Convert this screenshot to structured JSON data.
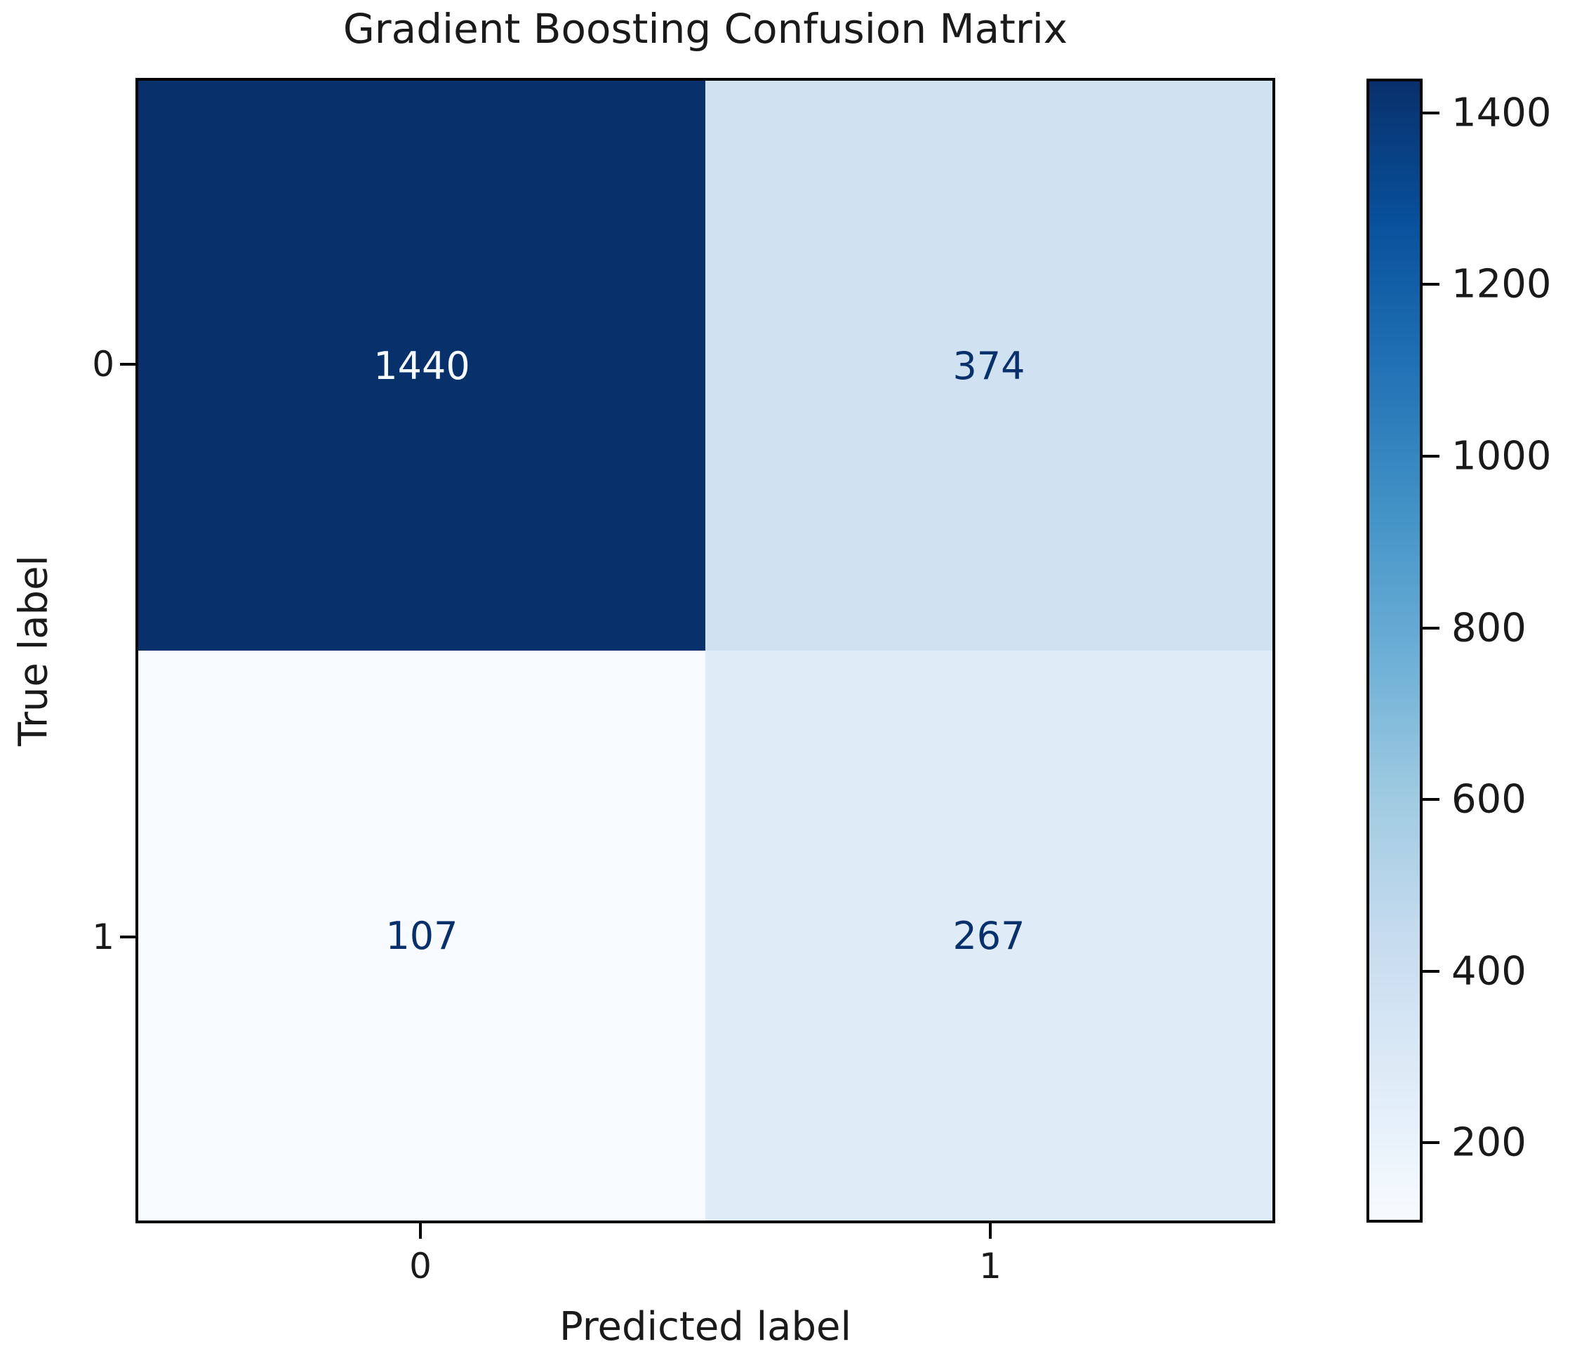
{
  "figure": {
    "title": "Gradient Boosting Confusion Matrix",
    "xlabel": "Predicted label",
    "ylabel": "True label"
  },
  "chart_data": {
    "type": "heatmap",
    "title": "Gradient Boosting Confusion Matrix",
    "xlabel": "Predicted label",
    "ylabel": "True label",
    "x_tick_labels": [
      "0",
      "1"
    ],
    "y_tick_labels": [
      "0",
      "1"
    ],
    "matrix": [
      [
        1440,
        374
      ],
      [
        107,
        267
      ]
    ],
    "cells": [
      {
        "true_label": 0,
        "predicted_label": 0,
        "count": 1440
      },
      {
        "true_label": 0,
        "predicted_label": 1,
        "count": 374
      },
      {
        "true_label": 1,
        "predicted_label": 0,
        "count": 107
      },
      {
        "true_label": 1,
        "predicted_label": 1,
        "count": 267
      }
    ],
    "vmin": 107,
    "vmax": 1440,
    "colormap": "Blues",
    "colorbar_ticks": [
      200,
      400,
      600,
      800,
      1000,
      1200,
      1400
    ],
    "colorbar_position": "right",
    "grid": false
  },
  "style": {
    "cell_colors": [
      [
        "#08306b",
        "#d0e1f2"
      ],
      [
        "#f7fbff",
        "#dfecf7"
      ]
    ],
    "cell_text_colors": [
      [
        "#f7fbff",
        "#08306b"
      ],
      [
        "#08306b",
        "#08306b"
      ]
    ],
    "colorbar_gradient_stops_bottom_to_top": [
      "#f7fbff",
      "#deebf7",
      "#c6dbef",
      "#9ecae1",
      "#6baed6",
      "#4292c6",
      "#2171b5",
      "#08519c",
      "#08306b"
    ],
    "spine_color": "#000000",
    "text_color": "#1a1a1a"
  }
}
